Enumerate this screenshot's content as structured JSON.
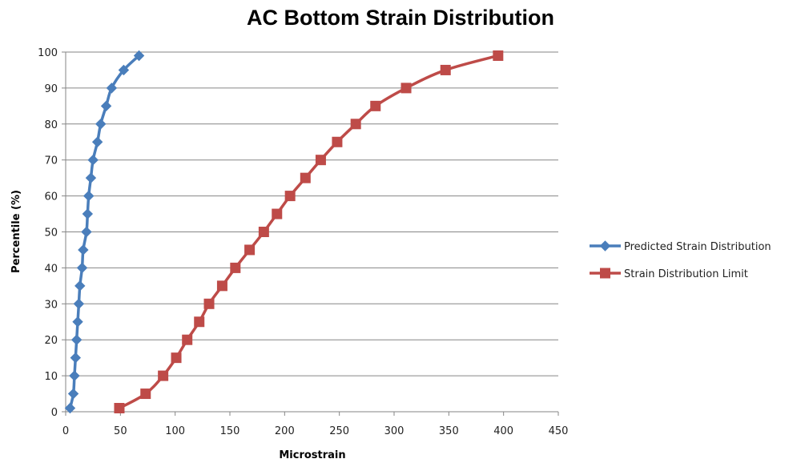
{
  "chart_data": {
    "type": "line",
    "title": "AC Bottom Strain Distribution",
    "xlabel": "Microstrain",
    "ylabel": "Percentile (%)",
    "xlim": [
      0,
      450
    ],
    "ylim": [
      0,
      100
    ],
    "x_ticks": [
      "0",
      "50",
      "100",
      "150",
      "200",
      "250",
      "300",
      "350",
      "400",
      "450"
    ],
    "y_ticks": [
      "0",
      "10",
      "20",
      "30",
      "40",
      "50",
      "60",
      "70",
      "80",
      "90",
      "100"
    ],
    "grid": "horizontal",
    "legend_position": "right",
    "series": [
      {
        "name": "Predicted Strain Distribution",
        "color": "#4a7ebb",
        "marker": "diamond",
        "points": [
          [
            4,
            1
          ],
          [
            7,
            5
          ],
          [
            8,
            10
          ],
          [
            9,
            15
          ],
          [
            10,
            20
          ],
          [
            11,
            25
          ],
          [
            12,
            30
          ],
          [
            13,
            35
          ],
          [
            15,
            40
          ],
          [
            16,
            45
          ],
          [
            19,
            50
          ],
          [
            20,
            55
          ],
          [
            21,
            60
          ],
          [
            23,
            65
          ],
          [
            25,
            70
          ],
          [
            29,
            75
          ],
          [
            32,
            80
          ],
          [
            37,
            85
          ],
          [
            42,
            90
          ],
          [
            53,
            95
          ],
          [
            67,
            99
          ]
        ]
      },
      {
        "name": "Strain Distribution Limit",
        "color": "#be4b48",
        "marker": "square",
        "points": [
          [
            49,
            1
          ],
          [
            73,
            5
          ],
          [
            89,
            10
          ],
          [
            101,
            15
          ],
          [
            111,
            20
          ],
          [
            122,
            25
          ],
          [
            131,
            30
          ],
          [
            143,
            35
          ],
          [
            155,
            40
          ],
          [
            168,
            45
          ],
          [
            181,
            50
          ],
          [
            193,
            55
          ],
          [
            205,
            60
          ],
          [
            219,
            65
          ],
          [
            233,
            70
          ],
          [
            248,
            75
          ],
          [
            265,
            80
          ],
          [
            283,
            85
          ],
          [
            311,
            90
          ],
          [
            347,
            95
          ],
          [
            395,
            99
          ]
        ]
      }
    ]
  }
}
